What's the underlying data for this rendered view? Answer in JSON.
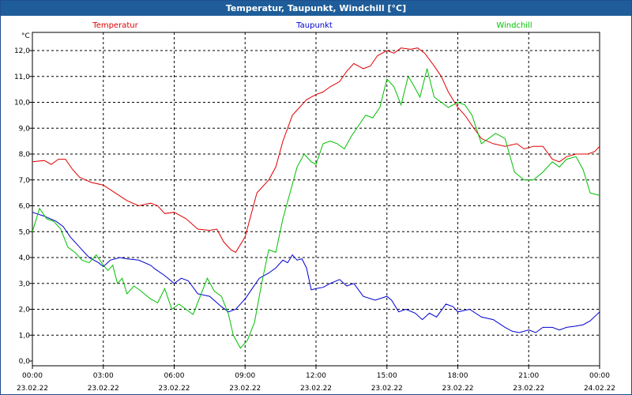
{
  "window": {
    "title": "Temperatur, Taupunkt, Windchill [°C]"
  },
  "chart_data": {
    "type": "line",
    "title": "Temperatur, Taupunkt, Windchill [°C]",
    "ylabel": "°C",
    "ylim": [
      0,
      12.6
    ],
    "xlim": [
      0,
      24
    ],
    "y_ticks": [
      "0,0",
      "1,0",
      "2,0",
      "3,0",
      "4,0",
      "5,0",
      "6,0",
      "7,0",
      "8,0",
      "9,0",
      "10,0",
      "11,0",
      "12,0"
    ],
    "x_ticks": [
      {
        "time": "00:00",
        "date": "23.02.22"
      },
      {
        "time": "03:00",
        "date": "23.02.22"
      },
      {
        "time": "06:00",
        "date": "23.02.22"
      },
      {
        "time": "09:00",
        "date": "23.02.22"
      },
      {
        "time": "12:00",
        "date": "23.02.22"
      },
      {
        "time": "15:00",
        "date": "23.02.22"
      },
      {
        "time": "18:00",
        "date": "23.02.22"
      },
      {
        "time": "21:00",
        "date": "23.02.22"
      },
      {
        "time": "00:00",
        "date": "24.02.22"
      }
    ],
    "grid": true,
    "series": [
      {
        "name": "Temperatur",
        "color": "#e00000",
        "points": [
          [
            0,
            7.7
          ],
          [
            0.5,
            7.75
          ],
          [
            0.8,
            7.6
          ],
          [
            1.1,
            7.8
          ],
          [
            1.4,
            7.8
          ],
          [
            1.7,
            7.4
          ],
          [
            2,
            7.1
          ],
          [
            2.5,
            6.9
          ],
          [
            3,
            6.8
          ],
          [
            3.5,
            6.5
          ],
          [
            4,
            6.2
          ],
          [
            4.5,
            6.0
          ],
          [
            5,
            6.1
          ],
          [
            5.3,
            6.0
          ],
          [
            5.6,
            5.7
          ],
          [
            6,
            5.75
          ],
          [
            6.5,
            5.5
          ],
          [
            7,
            5.1
          ],
          [
            7.5,
            5.05
          ],
          [
            7.8,
            5.1
          ],
          [
            8.1,
            4.6
          ],
          [
            8.4,
            4.3
          ],
          [
            8.6,
            4.2
          ],
          [
            9,
            4.8
          ],
          [
            9.5,
            6.5
          ],
          [
            10,
            7.0
          ],
          [
            10.3,
            7.5
          ],
          [
            10.6,
            8.5
          ],
          [
            11,
            9.5
          ],
          [
            11.3,
            9.8
          ],
          [
            11.6,
            10.1
          ],
          [
            12,
            10.3
          ],
          [
            12.3,
            10.4
          ],
          [
            12.6,
            10.6
          ],
          [
            13,
            10.8
          ],
          [
            13.3,
            11.2
          ],
          [
            13.6,
            11.5
          ],
          [
            14,
            11.3
          ],
          [
            14.3,
            11.4
          ],
          [
            14.6,
            11.8
          ],
          [
            15,
            12.0
          ],
          [
            15.3,
            11.9
          ],
          [
            15.6,
            12.1
          ],
          [
            16,
            12.05
          ],
          [
            16.3,
            12.1
          ],
          [
            16.6,
            11.9
          ],
          [
            17,
            11.4
          ],
          [
            17.3,
            11.0
          ],
          [
            17.6,
            10.4
          ],
          [
            18,
            9.8
          ],
          [
            18.3,
            9.5
          ],
          [
            18.6,
            9.1
          ],
          [
            19,
            8.6
          ],
          [
            19.5,
            8.4
          ],
          [
            20,
            8.3
          ],
          [
            20.5,
            8.4
          ],
          [
            20.8,
            8.2
          ],
          [
            21.2,
            8.3
          ],
          [
            21.6,
            8.3
          ],
          [
            22,
            7.8
          ],
          [
            22.3,
            7.7
          ],
          [
            22.6,
            7.9
          ],
          [
            23,
            8.0
          ],
          [
            23.5,
            8.0
          ],
          [
            23.8,
            8.1
          ],
          [
            24,
            8.3
          ]
        ]
      },
      {
        "name": "Taupunkt",
        "color": "#0000d0",
        "points": [
          [
            0,
            5.75
          ],
          [
            0.5,
            5.6
          ],
          [
            1,
            5.4
          ],
          [
            1.3,
            5.2
          ],
          [
            1.6,
            4.8
          ],
          [
            2,
            4.4
          ],
          [
            2.4,
            4.0
          ],
          [
            2.8,
            3.8
          ],
          [
            3,
            3.65
          ],
          [
            3.3,
            3.9
          ],
          [
            3.7,
            4.0
          ],
          [
            4,
            3.95
          ],
          [
            4.5,
            3.9
          ],
          [
            5,
            3.7
          ],
          [
            5.2,
            3.55
          ],
          [
            5.6,
            3.3
          ],
          [
            6,
            3.0
          ],
          [
            6.3,
            3.2
          ],
          [
            6.6,
            3.1
          ],
          [
            7,
            2.6
          ],
          [
            7.5,
            2.5
          ],
          [
            8,
            2.1
          ],
          [
            8.3,
            1.9
          ],
          [
            8.6,
            2.0
          ],
          [
            9,
            2.4
          ],
          [
            9.3,
            2.8
          ],
          [
            9.6,
            3.2
          ],
          [
            10,
            3.4
          ],
          [
            10.3,
            3.6
          ],
          [
            10.6,
            3.9
          ],
          [
            10.8,
            3.8
          ],
          [
            11,
            4.1
          ],
          [
            11.2,
            3.9
          ],
          [
            11.4,
            3.95
          ],
          [
            11.6,
            3.6
          ],
          [
            11.8,
            2.75
          ],
          [
            12,
            2.8
          ],
          [
            12.3,
            2.85
          ],
          [
            12.6,
            3.0
          ],
          [
            13,
            3.15
          ],
          [
            13.3,
            2.9
          ],
          [
            13.6,
            3.0
          ],
          [
            14,
            2.5
          ],
          [
            14.5,
            2.35
          ],
          [
            15,
            2.5
          ],
          [
            15.2,
            2.35
          ],
          [
            15.5,
            1.9
          ],
          [
            15.8,
            2.0
          ],
          [
            16.2,
            1.85
          ],
          [
            16.5,
            1.6
          ],
          [
            16.8,
            1.85
          ],
          [
            17.1,
            1.7
          ],
          [
            17.5,
            2.2
          ],
          [
            17.8,
            2.1
          ],
          [
            18,
            1.9
          ],
          [
            18.5,
            2.0
          ],
          [
            19,
            1.7
          ],
          [
            19.5,
            1.6
          ],
          [
            20,
            1.3
          ],
          [
            20.3,
            1.15
          ],
          [
            20.6,
            1.1
          ],
          [
            21,
            1.2
          ],
          [
            21.3,
            1.1
          ],
          [
            21.6,
            1.3
          ],
          [
            22,
            1.3
          ],
          [
            22.3,
            1.2
          ],
          [
            22.6,
            1.3
          ],
          [
            23,
            1.35
          ],
          [
            23.3,
            1.4
          ],
          [
            23.6,
            1.55
          ],
          [
            24,
            1.9
          ]
        ]
      },
      {
        "name": "Windchill",
        "color": "#00c000",
        "points": [
          [
            0,
            5.0
          ],
          [
            0.3,
            5.9
          ],
          [
            0.6,
            5.5
          ],
          [
            0.9,
            5.4
          ],
          [
            1.2,
            5.1
          ],
          [
            1.5,
            4.4
          ],
          [
            1.8,
            4.2
          ],
          [
            2.1,
            3.9
          ],
          [
            2.4,
            3.8
          ],
          [
            2.7,
            4.1
          ],
          [
            3,
            3.7
          ],
          [
            3.2,
            3.5
          ],
          [
            3.4,
            3.7
          ],
          [
            3.6,
            3.0
          ],
          [
            3.8,
            3.2
          ],
          [
            4,
            2.6
          ],
          [
            4.3,
            2.9
          ],
          [
            4.6,
            2.7
          ],
          [
            5,
            2.4
          ],
          [
            5.3,
            2.25
          ],
          [
            5.6,
            2.8
          ],
          [
            5.9,
            2.0
          ],
          [
            6.2,
            2.2
          ],
          [
            6.5,
            2.0
          ],
          [
            6.8,
            1.8
          ],
          [
            7.1,
            2.5
          ],
          [
            7.4,
            3.2
          ],
          [
            7.7,
            2.7
          ],
          [
            8,
            2.5
          ],
          [
            8.3,
            1.8
          ],
          [
            8.5,
            1.0
          ],
          [
            8.8,
            0.5
          ],
          [
            9.1,
            0.8
          ],
          [
            9.4,
            1.5
          ],
          [
            9.7,
            3.0
          ],
          [
            10,
            4.3
          ],
          [
            10.3,
            4.2
          ],
          [
            10.6,
            5.5
          ],
          [
            10.9,
            6.5
          ],
          [
            11.2,
            7.5
          ],
          [
            11.5,
            8.0
          ],
          [
            11.8,
            7.7
          ],
          [
            12,
            7.6
          ],
          [
            12.3,
            8.4
          ],
          [
            12.6,
            8.5
          ],
          [
            12.9,
            8.4
          ],
          [
            13.2,
            8.2
          ],
          [
            13.5,
            8.7
          ],
          [
            13.8,
            9.1
          ],
          [
            14.1,
            9.5
          ],
          [
            14.4,
            9.4
          ],
          [
            14.7,
            9.8
          ],
          [
            15,
            10.9
          ],
          [
            15.3,
            10.6
          ],
          [
            15.6,
            9.9
          ],
          [
            15.9,
            11.0
          ],
          [
            16.1,
            10.7
          ],
          [
            16.4,
            10.2
          ],
          [
            16.7,
            11.3
          ],
          [
            17,
            10.2
          ],
          [
            17.3,
            10.0
          ],
          [
            17.6,
            9.8
          ],
          [
            18,
            10.0
          ],
          [
            18.3,
            9.9
          ],
          [
            18.6,
            9.5
          ],
          [
            19,
            8.4
          ],
          [
            19.3,
            8.6
          ],
          [
            19.6,
            8.8
          ],
          [
            20,
            8.6
          ],
          [
            20.4,
            7.3
          ],
          [
            20.8,
            7.0
          ],
          [
            21.2,
            7.0
          ],
          [
            21.6,
            7.3
          ],
          [
            22,
            7.7
          ],
          [
            22.3,
            7.5
          ],
          [
            22.6,
            7.8
          ],
          [
            23,
            7.9
          ],
          [
            23.3,
            7.4
          ],
          [
            23.6,
            6.5
          ],
          [
            24,
            6.4
          ]
        ]
      }
    ]
  }
}
